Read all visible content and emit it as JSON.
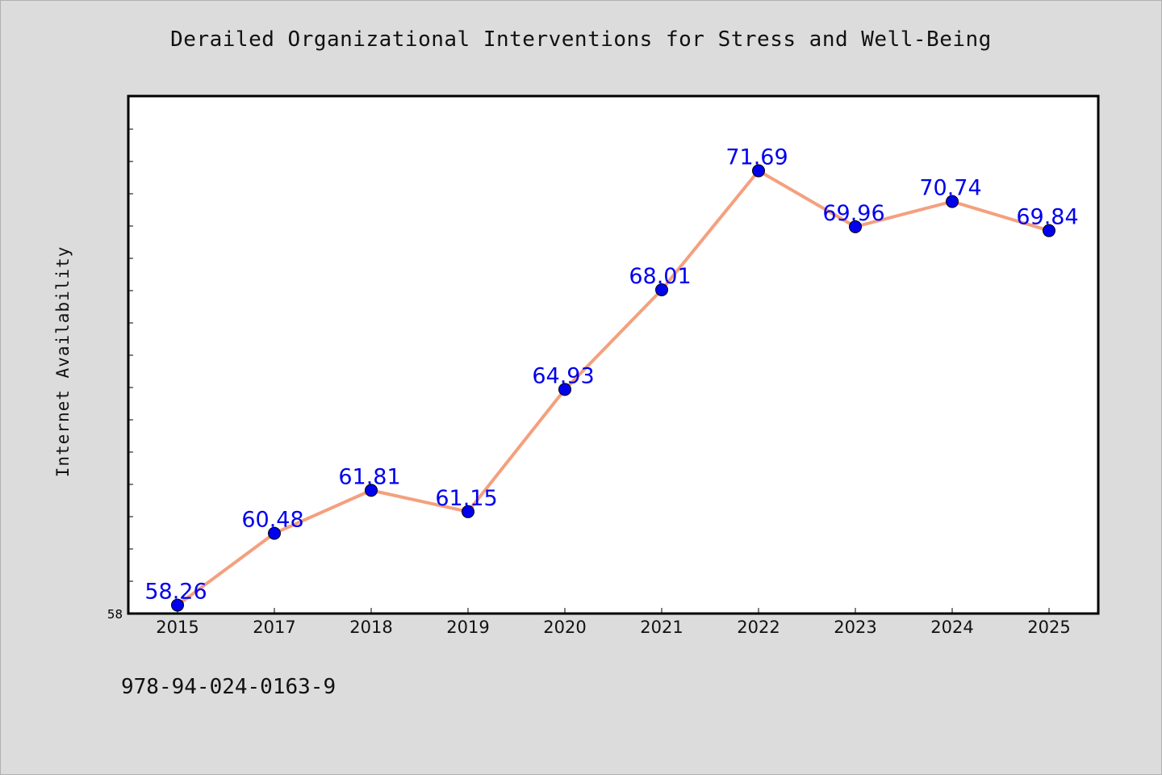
{
  "chart_data": {
    "type": "line",
    "title": "Derailed Organizational Interventions for Stress and Well-Being",
    "ylabel": "Internet Availability",
    "xlabel": "",
    "categories": [
      "2015",
      "2017",
      "2018",
      "2019",
      "2020",
      "2021",
      "2022",
      "2023",
      "2024",
      "2025"
    ],
    "series": [
      {
        "values": [
          58.26,
          60.48,
          61.81,
          61.15,
          64.93,
          68.01,
          71.69,
          69.96,
          70.74,
          69.84
        ]
      }
    ],
    "ylim": [
      58,
      74
    ],
    "y_tick_labels": [
      "58"
    ],
    "grid": false,
    "line_color": "#f4a07e",
    "marker_color": "#0000ee",
    "label_color": "#0000ee"
  },
  "footer": {
    "id_text": "978-94-024-0163-9"
  }
}
